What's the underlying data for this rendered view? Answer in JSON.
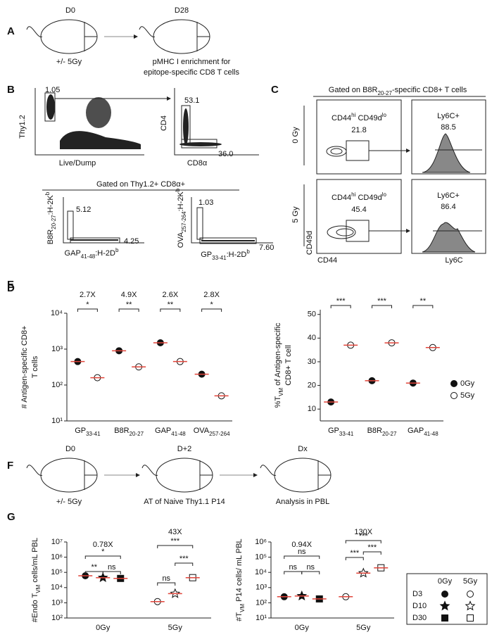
{
  "panels": {
    "a": {
      "label": "A",
      "day_start": "D0",
      "day_end": "D28",
      "treatment": "+/- 5Gy",
      "outcome": [
        "pMHC I enrichment for",
        "epitope-specific CD8 T cells"
      ]
    },
    "b": {
      "label": "B",
      "plot1": {
        "gate": "1.05",
        "y_label": "Thy1.2",
        "x_label": "Live/Dump"
      },
      "plot2": {
        "gates": [
          "53.1",
          "36.0"
        ],
        "y_label": "CD4",
        "x_label": "CD8α"
      },
      "gated_on": "Gated on Thy1.2+  CD8α+",
      "plot3": {
        "gates": [
          "5.12",
          "4.25"
        ],
        "y_label": [
          "B8R",
          "20-27",
          ":H-2K",
          "b"
        ],
        "x_label": [
          "GAP",
          "41-48",
          ":H-2D",
          "b"
        ]
      },
      "plot4": {
        "gates": [
          "1.03",
          "7.60"
        ],
        "y_label": [
          "OVA",
          "257-264",
          ":H-2K",
          "b"
        ],
        "x_label": [
          "GP",
          "33-41",
          ":H-2D",
          "b"
        ]
      }
    },
    "c": {
      "label": "C",
      "gated_on": [
        "Gated on B8R",
        "20-27",
        "-specific CD8+ T cells"
      ],
      "rows": [
        {
          "condition": "0 Gy",
          "gate_name": [
            "CD44",
            "hi",
            " CD49d",
            "lo"
          ],
          "gate_value": "21.8",
          "hist_name": "Ly6C+",
          "hist_value": "88.5"
        },
        {
          "condition": "5 Gy",
          "gate_name": [
            "CD44",
            "hi",
            " CD49d",
            "lo"
          ],
          "gate_value": "45.4",
          "hist_name": "Ly6C+",
          "hist_value": "86.4"
        }
      ],
      "y_label": "CD49d",
      "x_label": "CD44",
      "hist_x_label": "Ly6C"
    },
    "f": {
      "label": "F",
      "days": [
        "D0",
        "D+2",
        "Dx"
      ],
      "steps": [
        "+/- 5Gy",
        "AT of Naive Thy1.1 P14",
        "Analysis in PBL"
      ]
    }
  },
  "chart_data": [
    {
      "type": "scatter",
      "panel_label": "D",
      "y_label": [
        [
          "# Antigen-specific CD8+"
        ],
        [
          "T cells"
        ]
      ],
      "log": true,
      "ylim": [
        10,
        10000
      ],
      "yticks": [
        {
          "value": 10,
          "label": "10¹"
        },
        {
          "value": 100,
          "label": "10²"
        },
        {
          "value": 1000,
          "label": "10³"
        },
        {
          "value": 10000,
          "label": "10⁴"
        }
      ],
      "categories": [
        [
          "GP",
          "33-41"
        ],
        [
          "B8R",
          "20-27"
        ],
        [
          "GAP",
          "41-48"
        ],
        [
          "OVA",
          "257-264"
        ]
      ],
      "series": [
        {
          "values": [
            450,
            900,
            1500,
            200
          ],
          "filled": true
        },
        {
          "values": [
            160,
            320,
            450,
            50
          ],
          "filled": false
        }
      ],
      "mean_color": "#e0443a",
      "fold_changes": [
        "2.7X",
        "4.9X",
        "2.6X",
        "2.8X"
      ],
      "significance": [
        "*",
        "**",
        "**",
        "*"
      ]
    },
    {
      "type": "scatter",
      "panel_label": "E",
      "y_label": [
        [
          "%T",
          "VM",
          " of Antigen-specific"
        ],
        [
          "CD8+ T cell"
        ]
      ],
      "log": false,
      "ylim": [
        5,
        52
      ],
      "yticks": [
        10,
        20,
        30,
        40,
        50
      ],
      "categories": [
        [
          "GP",
          "33-41"
        ],
        [
          "B8R",
          "20-27"
        ],
        [
          "GAP",
          "41-48"
        ]
      ],
      "series": [
        {
          "name": "0Gy",
          "values": [
            13,
            22,
            21
          ],
          "filled": true
        },
        {
          "name": "5Gy",
          "values": [
            37,
            38,
            36
          ],
          "filled": false
        }
      ],
      "mean_color": "#e0443a",
      "significance": [
        "***",
        "***",
        "**"
      ]
    },
    {
      "type": "scatter",
      "panel_label": "G",
      "y_label": [
        [
          "#Endo T",
          "VM",
          " cells/mL PBL"
        ]
      ],
      "log": true,
      "ylim": [
        100,
        10000000
      ],
      "yticks": [
        {
          "value": 100,
          "label": "10²"
        },
        {
          "value": 1000,
          "label": "10³"
        },
        {
          "value": 10000,
          "label": "10⁴"
        },
        {
          "value": 100000,
          "label": "10⁵"
        },
        {
          "value": 1000000,
          "label": "10⁶"
        },
        {
          "value": 10000000,
          "label": "10⁷"
        }
      ],
      "categories": [
        [
          "0Gy"
        ],
        [
          "5Gy"
        ]
      ],
      "filled": [
        true,
        false
      ],
      "series": [
        {
          "name": "D3",
          "marker": "circle",
          "values": [
            60000,
            1200
          ]
        },
        {
          "name": "D10",
          "marker": "star",
          "values": [
            45000,
            4000
          ]
        },
        {
          "name": "D30",
          "marker": "square",
          "values": [
            40000,
            45000
          ]
        }
      ],
      "legend_columns": [
        "0Gy",
        "5Gy"
      ],
      "mean_color": "#e0443a",
      "fold_changes": [
        "0.78X",
        "43X"
      ],
      "significance": [
        "*",
        "**",
        "ns",
        "***",
        "ns",
        "***"
      ]
    },
    {
      "type": "scatter",
      "y_label": [
        [
          "#T",
          "VM",
          " P14 cells/ mL PBL"
        ]
      ],
      "log": true,
      "ylim": [
        10,
        1000000
      ],
      "yticks": [
        {
          "value": 10,
          "label": "10¹"
        },
        {
          "value": 100,
          "label": "10²"
        },
        {
          "value": 1000,
          "label": "10³"
        },
        {
          "value": 10000,
          "label": "10⁴"
        },
        {
          "value": 100000,
          "label": "10⁵"
        },
        {
          "value": 1000000,
          "label": "10⁶"
        }
      ],
      "categories": [
        [
          "0Gy"
        ],
        [
          "5Gy"
        ]
      ],
      "filled": [
        true,
        false
      ],
      "series": [
        {
          "marker": "circle",
          "values": [
            250,
            250
          ]
        },
        {
          "marker": "star",
          "values": [
            280,
            9000
          ]
        },
        {
          "marker": "square",
          "values": [
            180,
            20000
          ]
        }
      ],
      "mean_color": "#e0443a",
      "fold_changes": [
        "0.94X",
        "130X"
      ],
      "significance": [
        "ns",
        "ns",
        "ns",
        "***",
        "***",
        "***"
      ]
    }
  ]
}
